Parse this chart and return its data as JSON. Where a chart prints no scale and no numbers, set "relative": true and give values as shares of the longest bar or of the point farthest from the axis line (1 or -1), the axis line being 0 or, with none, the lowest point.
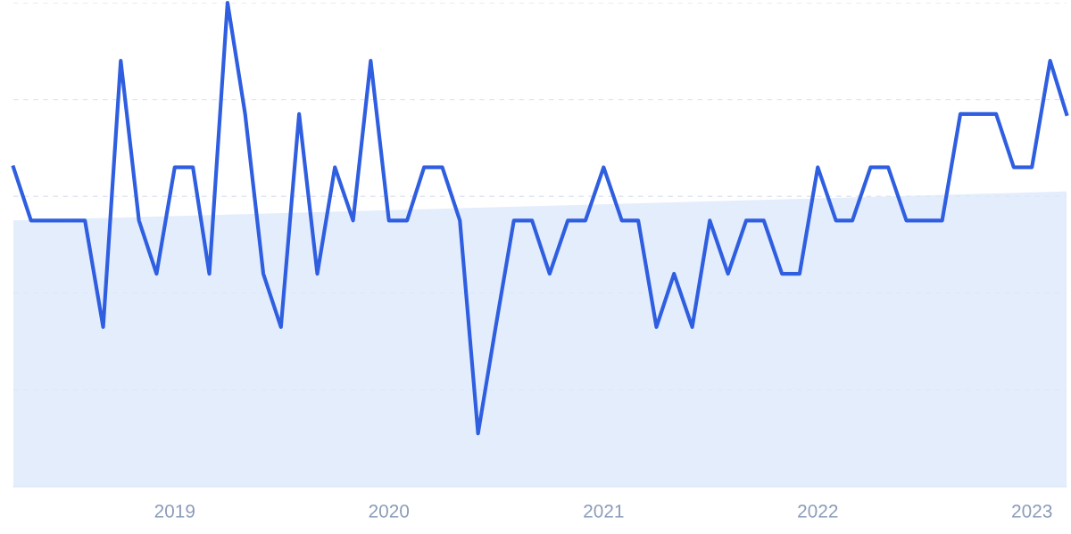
{
  "chart_data": {
    "type": "line",
    "relative": true,
    "grid": "y",
    "line_style": "solid",
    "marker": "none",
    "xlim": [
      "2018-04",
      "2023-03"
    ],
    "xticks": [
      {
        "value": "2019-01",
        "label": "2019"
      },
      {
        "value": "2020-01",
        "label": "2020"
      },
      {
        "value": "2021-01",
        "label": "2021"
      },
      {
        "value": "2022-01",
        "label": "2022"
      },
      {
        "value": "2023-01",
        "label": "2023"
      }
    ],
    "x": [
      "2018-04",
      "2018-05",
      "2018-06",
      "2018-07",
      "2018-08",
      "2018-09",
      "2018-10",
      "2018-11",
      "2018-12",
      "2019-01",
      "2019-02",
      "2019-03",
      "2019-04",
      "2019-05",
      "2019-06",
      "2019-07",
      "2019-08",
      "2019-09",
      "2019-10",
      "2019-11",
      "2019-12",
      "2020-01",
      "2020-02",
      "2020-03",
      "2020-04",
      "2020-05",
      "2020-06",
      "2020-07",
      "2020-08",
      "2020-09",
      "2020-10",
      "2020-11",
      "2020-12",
      "2021-01",
      "2021-02",
      "2021-03",
      "2021-04",
      "2021-05",
      "2021-06",
      "2021-07",
      "2021-08",
      "2021-09",
      "2021-10",
      "2021-11",
      "2021-12",
      "2022-01",
      "2022-02",
      "2022-03",
      "2022-04",
      "2022-05",
      "2022-06",
      "2022-07",
      "2022-08",
      "2022-09",
      "2022-10",
      "2022-11",
      "2022-12",
      "2023-01",
      "2023-02",
      "2023-03"
    ],
    "series": [
      {
        "type": "area",
        "color": "#dce9fb",
        "x": [
          "2018-04",
          "2023-03"
        ],
        "values": [
          0.55,
          0.61
        ]
      },
      {
        "color": "#2f5fe0",
        "values": [
          0.66,
          0.55,
          0.55,
          0.55,
          0.55,
          0.33,
          0.88,
          0.55,
          0.44,
          0.66,
          0.66,
          0.44,
          1.0,
          0.77,
          0.44,
          0.33,
          0.77,
          0.44,
          0.66,
          0.55,
          0.88,
          0.55,
          0.55,
          0.66,
          0.66,
          0.55,
          0.11,
          0.33,
          0.55,
          0.55,
          0.44,
          0.55,
          0.55,
          0.66,
          0.55,
          0.55,
          0.33,
          0.44,
          0.33,
          0.55,
          0.44,
          0.55,
          0.55,
          0.44,
          0.44,
          0.66,
          0.55,
          0.55,
          0.66,
          0.66,
          0.55,
          0.55,
          0.55,
          0.77,
          0.77,
          0.77,
          0.66,
          0.66,
          0.88,
          0.77
        ]
      }
    ]
  }
}
